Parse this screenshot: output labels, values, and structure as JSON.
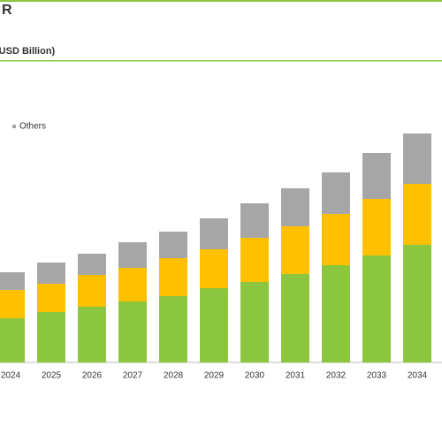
{
  "chart_data": {
    "type": "stacked_bar",
    "title": "R",
    "subtitle": "(USD Billion)",
    "categories": [
      "2024",
      "2025",
      "2026",
      "2027",
      "2028",
      "2029",
      "2030",
      "2031",
      "2032",
      "2033",
      "2034"
    ],
    "series": [
      {
        "color": "#8cc63f",
        "values": [
          5.0,
          5.7,
          6.3,
          6.9,
          7.5,
          8.4,
          9.1,
          10.0,
          11.0,
          12.1,
          13.3
        ]
      },
      {
        "color": "#ffc000",
        "values": [
          3.2,
          3.2,
          3.6,
          3.8,
          4.3,
          4.4,
          5.0,
          5.4,
          5.8,
          6.4,
          6.9
        ]
      },
      {
        "name": "Others",
        "color": "#a6a6a6",
        "values": [
          2.0,
          2.4,
          2.4,
          2.9,
          3.0,
          3.5,
          3.9,
          4.3,
          4.7,
          5.2,
          5.7
        ]
      }
    ],
    "ylim": [
      0,
      26
    ]
  }
}
